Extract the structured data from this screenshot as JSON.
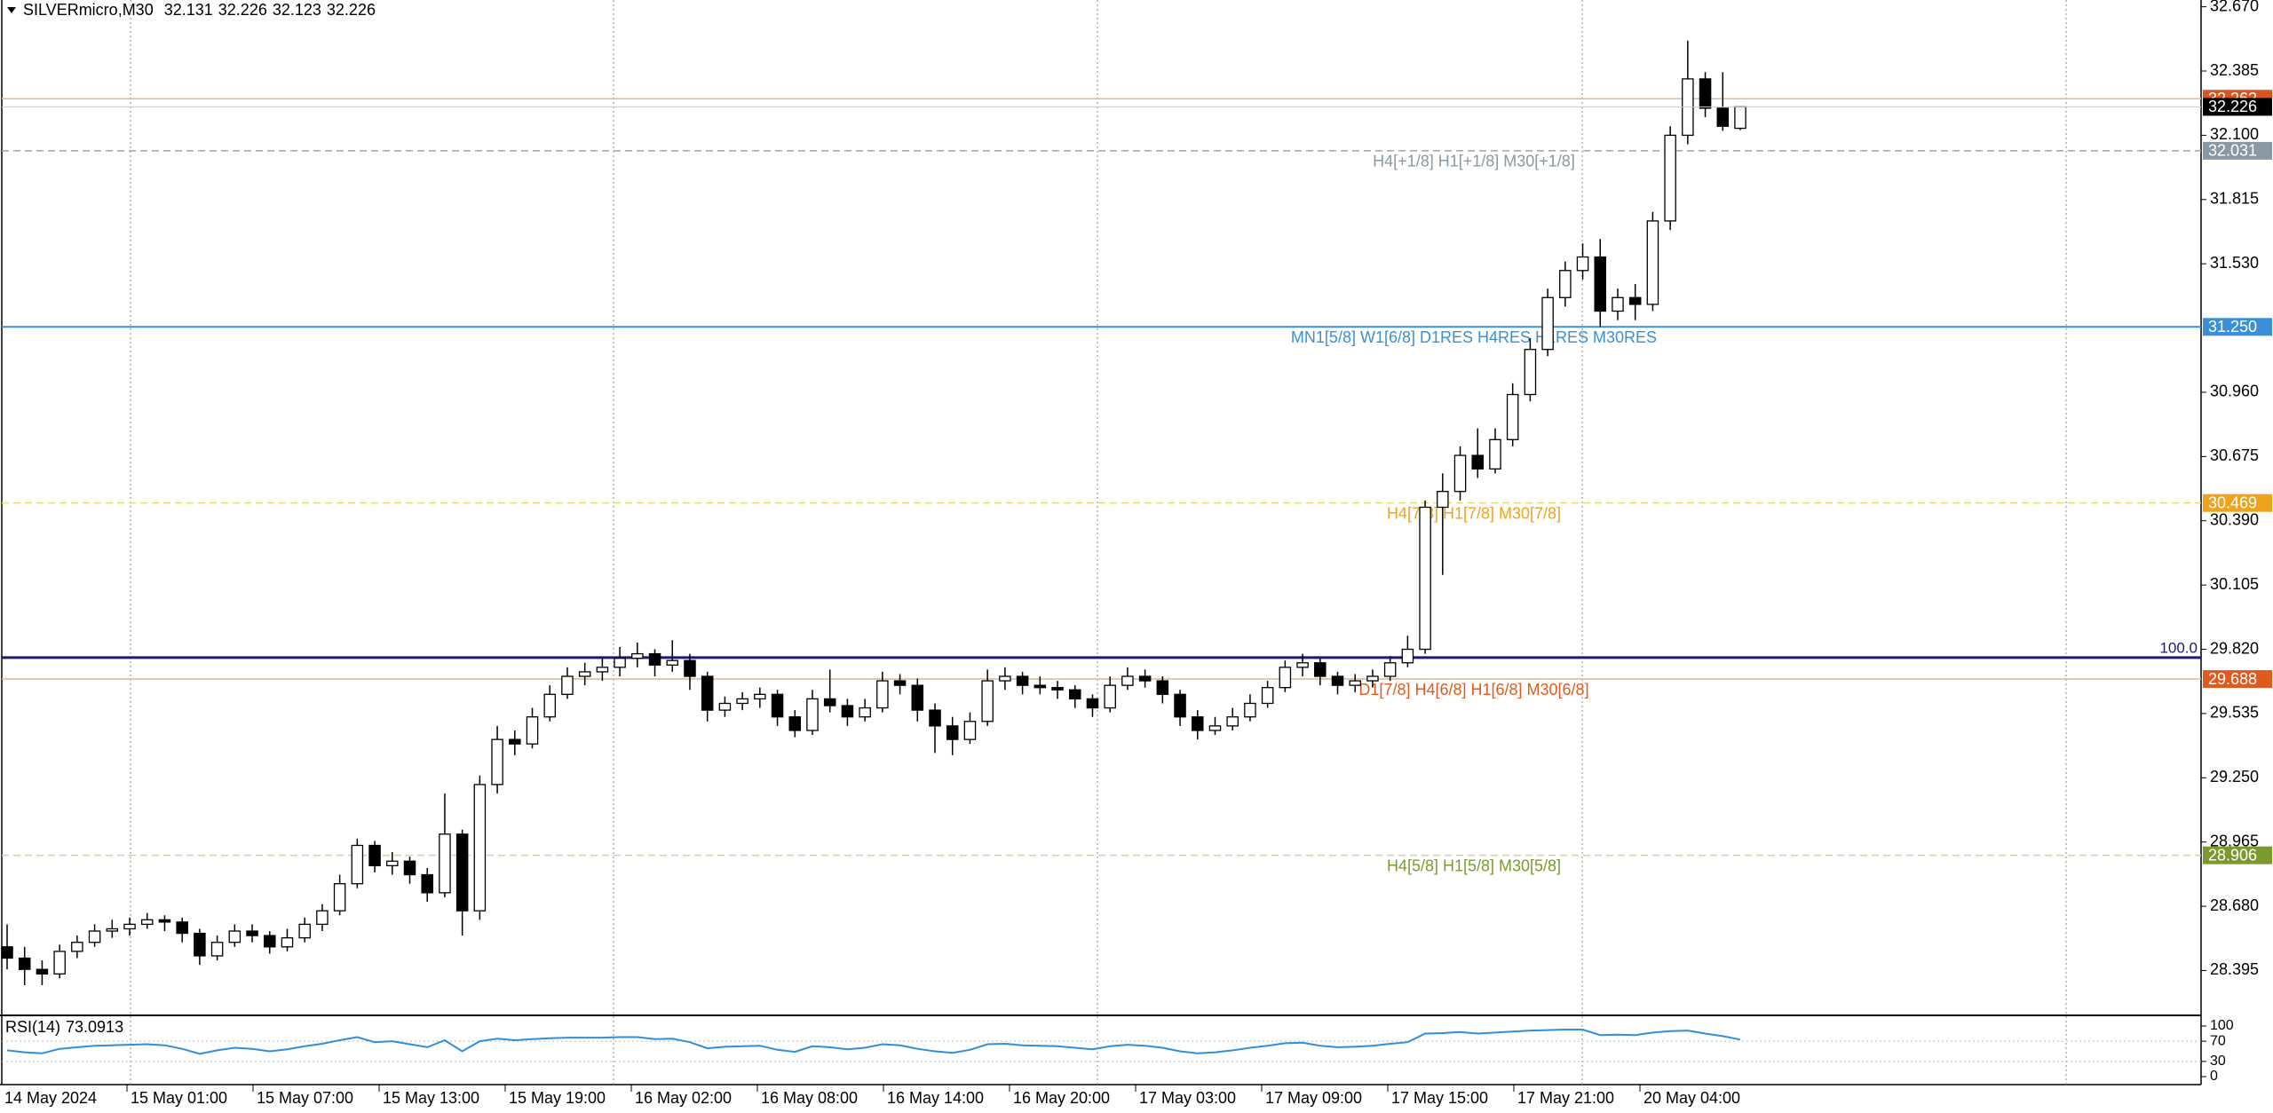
{
  "chart_data": [
    {
      "type": "candlestick",
      "symbol": "SILVERmicro,M30",
      "candles": [
        [
          28.5,
          28.6,
          28.4,
          28.45
        ],
        [
          28.45,
          28.5,
          28.33,
          28.4
        ],
        [
          28.4,
          28.44,
          28.33,
          28.38
        ],
        [
          28.38,
          28.51,
          28.36,
          28.48
        ],
        [
          28.48,
          28.55,
          28.45,
          28.52
        ],
        [
          28.52,
          28.6,
          28.5,
          28.57
        ],
        [
          28.57,
          28.62,
          28.54,
          28.58
        ],
        [
          28.58,
          28.63,
          28.55,
          28.6
        ],
        [
          28.6,
          28.65,
          28.58,
          28.62
        ],
        [
          28.62,
          28.64,
          28.57,
          28.61
        ],
        [
          28.61,
          28.63,
          28.52,
          28.56
        ],
        [
          28.56,
          28.58,
          28.42,
          28.46
        ],
        [
          28.46,
          28.55,
          28.44,
          28.52
        ],
        [
          28.52,
          28.6,
          28.5,
          28.57
        ],
        [
          28.57,
          28.6,
          28.52,
          28.55
        ],
        [
          28.55,
          28.57,
          28.47,
          28.5
        ],
        [
          28.5,
          28.58,
          28.48,
          28.54
        ],
        [
          28.54,
          28.63,
          28.52,
          28.6
        ],
        [
          28.6,
          28.69,
          28.57,
          28.66
        ],
        [
          28.66,
          28.82,
          28.64,
          28.78
        ],
        [
          28.78,
          28.98,
          28.76,
          28.95
        ],
        [
          28.95,
          28.97,
          28.83,
          28.86
        ],
        [
          28.86,
          28.92,
          28.82,
          28.88
        ],
        [
          28.88,
          28.9,
          28.78,
          28.82
        ],
        [
          28.82,
          28.85,
          28.7,
          28.74
        ],
        [
          28.74,
          29.18,
          28.72,
          29.0
        ],
        [
          29.0,
          29.02,
          28.55,
          28.66
        ],
        [
          28.66,
          29.26,
          28.62,
          29.22
        ],
        [
          29.22,
          29.48,
          29.18,
          29.42
        ],
        [
          29.42,
          29.46,
          29.35,
          29.4
        ],
        [
          29.4,
          29.56,
          29.38,
          29.52
        ],
        [
          29.52,
          29.66,
          29.5,
          29.62
        ],
        [
          29.62,
          29.74,
          29.6,
          29.7
        ],
        [
          29.7,
          29.76,
          29.66,
          29.72
        ],
        [
          29.72,
          29.78,
          29.68,
          29.74
        ],
        [
          29.74,
          29.83,
          29.7,
          29.78
        ],
        [
          29.78,
          29.85,
          29.74,
          29.8
        ],
        [
          29.8,
          29.82,
          29.7,
          29.75
        ],
        [
          29.75,
          29.86,
          29.72,
          29.77
        ],
        [
          29.77,
          29.8,
          29.64,
          29.7
        ],
        [
          29.7,
          29.72,
          29.5,
          29.55
        ],
        [
          29.55,
          29.61,
          29.52,
          29.58
        ],
        [
          29.58,
          29.63,
          29.55,
          29.6
        ],
        [
          29.6,
          29.65,
          29.56,
          29.62
        ],
        [
          29.62,
          29.64,
          29.48,
          29.52
        ],
        [
          29.52,
          29.55,
          29.43,
          29.46
        ],
        [
          29.46,
          29.64,
          29.44,
          29.6
        ],
        [
          29.6,
          29.73,
          29.54,
          29.57
        ],
        [
          29.57,
          29.6,
          29.48,
          29.52
        ],
        [
          29.52,
          29.6,
          29.5,
          29.56
        ],
        [
          29.56,
          29.72,
          29.54,
          29.68
        ],
        [
          29.68,
          29.71,
          29.62,
          29.66
        ],
        [
          29.66,
          29.69,
          29.5,
          29.55
        ],
        [
          29.55,
          29.58,
          29.36,
          29.48
        ],
        [
          29.48,
          29.52,
          29.35,
          29.42
        ],
        [
          29.42,
          29.54,
          29.4,
          29.5
        ],
        [
          29.5,
          29.73,
          29.48,
          29.68
        ],
        [
          29.68,
          29.74,
          29.64,
          29.7
        ],
        [
          29.7,
          29.72,
          29.62,
          29.66
        ],
        [
          29.66,
          29.7,
          29.62,
          29.65
        ],
        [
          29.65,
          29.68,
          29.6,
          29.64
        ],
        [
          29.64,
          29.66,
          29.56,
          29.6
        ],
        [
          29.6,
          29.62,
          29.52,
          29.56
        ],
        [
          29.56,
          29.7,
          29.54,
          29.66
        ],
        [
          29.66,
          29.74,
          29.64,
          29.7
        ],
        [
          29.7,
          29.73,
          29.65,
          29.68
        ],
        [
          29.68,
          29.7,
          29.58,
          29.62
        ],
        [
          29.62,
          29.64,
          29.48,
          29.52
        ],
        [
          29.52,
          29.55,
          29.42,
          29.46
        ],
        [
          29.46,
          29.52,
          29.44,
          29.48
        ],
        [
          29.48,
          29.56,
          29.46,
          29.52
        ],
        [
          29.52,
          29.62,
          29.5,
          29.58
        ],
        [
          29.58,
          29.68,
          29.56,
          29.65
        ],
        [
          29.65,
          29.77,
          29.63,
          29.74
        ],
        [
          29.74,
          29.8,
          29.7,
          29.76
        ],
        [
          29.76,
          29.78,
          29.66,
          29.7
        ],
        [
          29.7,
          29.72,
          29.62,
          29.66
        ],
        [
          29.66,
          29.71,
          29.63,
          29.68
        ],
        [
          29.68,
          29.73,
          29.65,
          29.7
        ],
        [
          29.7,
          29.79,
          29.68,
          29.76
        ],
        [
          29.76,
          29.88,
          29.74,
          29.82
        ],
        [
          29.82,
          30.48,
          29.8,
          30.45
        ],
        [
          30.45,
          30.6,
          30.15,
          30.52
        ],
        [
          30.52,
          30.72,
          30.48,
          30.68
        ],
        [
          30.68,
          30.8,
          30.58,
          30.62
        ],
        [
          30.62,
          30.8,
          30.6,
          30.75
        ],
        [
          30.75,
          31.0,
          30.72,
          30.95
        ],
        [
          30.95,
          31.2,
          30.92,
          31.15
        ],
        [
          31.15,
          31.42,
          31.12,
          31.38
        ],
        [
          31.38,
          31.54,
          31.34,
          31.5
        ],
        [
          31.5,
          31.62,
          31.46,
          31.56
        ],
        [
          31.56,
          31.64,
          31.25,
          31.32
        ],
        [
          31.32,
          31.42,
          31.28,
          31.38
        ],
        [
          31.38,
          31.44,
          31.28,
          31.35
        ],
        [
          31.35,
          31.76,
          31.32,
          31.72
        ],
        [
          31.72,
          32.14,
          31.68,
          32.1
        ],
        [
          32.1,
          32.52,
          32.06,
          32.35
        ],
        [
          32.35,
          32.38,
          32.18,
          32.22
        ],
        [
          32.22,
          32.38,
          32.12,
          32.14
        ],
        [
          32.131,
          32.226,
          32.123,
          32.226
        ]
      ],
      "time_labels": [
        "14 May 2024",
        "15 May 01:00",
        "15 May 07:00",
        "15 May 13:00",
        "15 May 19:00",
        "16 May 02:00",
        "16 May 08:00",
        "16 May 14:00",
        "16 May 20:00",
        "17 May 03:00",
        "17 May 09:00",
        "17 May 15:00",
        "17 May 21:00",
        "20 May 04:00"
      ],
      "ylim": [
        28.2,
        32.7
      ],
      "yticks": [
        {
          "value": 32.67,
          "label": "32.670"
        },
        32.385,
        {
          "value": 32.1,
          "label": "32.100"
        },
        31.815,
        {
          "value": 31.53,
          "label": "31.530"
        },
        {
          "value": 30.96,
          "label": "30.960"
        },
        30.675,
        {
          "value": 30.39,
          "label": "30.390"
        },
        30.105,
        {
          "value": 29.82,
          "label": "29.820"
        },
        29.535,
        {
          "value": 29.25,
          "label": "29.250"
        },
        28.965,
        {
          "value": 28.68,
          "label": "28.680"
        },
        28.395
      ],
      "levels": [
        {
          "value": 32.262,
          "color": "#d9541e",
          "line_color": "#e0b89a",
          "style": "solid"
        },
        {
          "value": 32.031,
          "label": "H4[+1/8] H1[+1/8] M30[+1/8]",
          "color": "#8a98a4",
          "line_color": "#9aa6b0",
          "style": "dashed"
        },
        {
          "value": 31.25,
          "value_label": "31.250",
          "label": "MN1[5/8] W1[6/8] D1RES H4RES H1RES M30RES",
          "color": "#3a8fd6",
          "line_color": "#3a8fd6",
          "style": "solid"
        },
        {
          "value": 30.469,
          "label": "H4[7/8] H1[7/8] M30[7/8]",
          "color": "#eda31e",
          "line_color": "#e6dc70",
          "style": "dashed"
        },
        {
          "value": 29.688,
          "label": "D1[7/8] H4[6/8] H1[6/8] M30[6/8]",
          "color": "#e05a1e",
          "line_color": "#d8b894",
          "style": "solid"
        },
        {
          "value": 28.906,
          "label": "H4[5/8] H1[5/8] M30[5/8]",
          "color": "#7a9a30",
          "line_color": "#cfd29a",
          "style": "dashed"
        }
      ],
      "fib_level": {
        "value": 29.783,
        "label": "100.0",
        "color": "#1a1a7a"
      },
      "bull_color": "#ffffff",
      "bear_color": "#000000"
    },
    {
      "type": "line",
      "title": "RSI(14)",
      "color": "#2f8fdc",
      "values": [
        52,
        48,
        46,
        55,
        58,
        61,
        62,
        63,
        64,
        62,
        55,
        45,
        52,
        57,
        55,
        50,
        54,
        60,
        65,
        72,
        78,
        68,
        70,
        64,
        58,
        72,
        50,
        70,
        75,
        72,
        74,
        76,
        77,
        77,
        77,
        78,
        78,
        74,
        75,
        68,
        56,
        59,
        60,
        61,
        53,
        49,
        60,
        58,
        54,
        57,
        64,
        62,
        55,
        50,
        47,
        53,
        64,
        65,
        62,
        61,
        60,
        57,
        54,
        60,
        63,
        61,
        57,
        50,
        46,
        48,
        52,
        57,
        61,
        66,
        67,
        61,
        58,
        59,
        61,
        65,
        68,
        85,
        86,
        88,
        85,
        87,
        89,
        91,
        92,
        93,
        93,
        82,
        83,
        82,
        87,
        90,
        91,
        85,
        80,
        73.0913
      ],
      "ylim": [
        0,
        100
      ],
      "yticks": [
        100,
        70,
        30,
        0
      ],
      "grid": true
    }
  ]
}
